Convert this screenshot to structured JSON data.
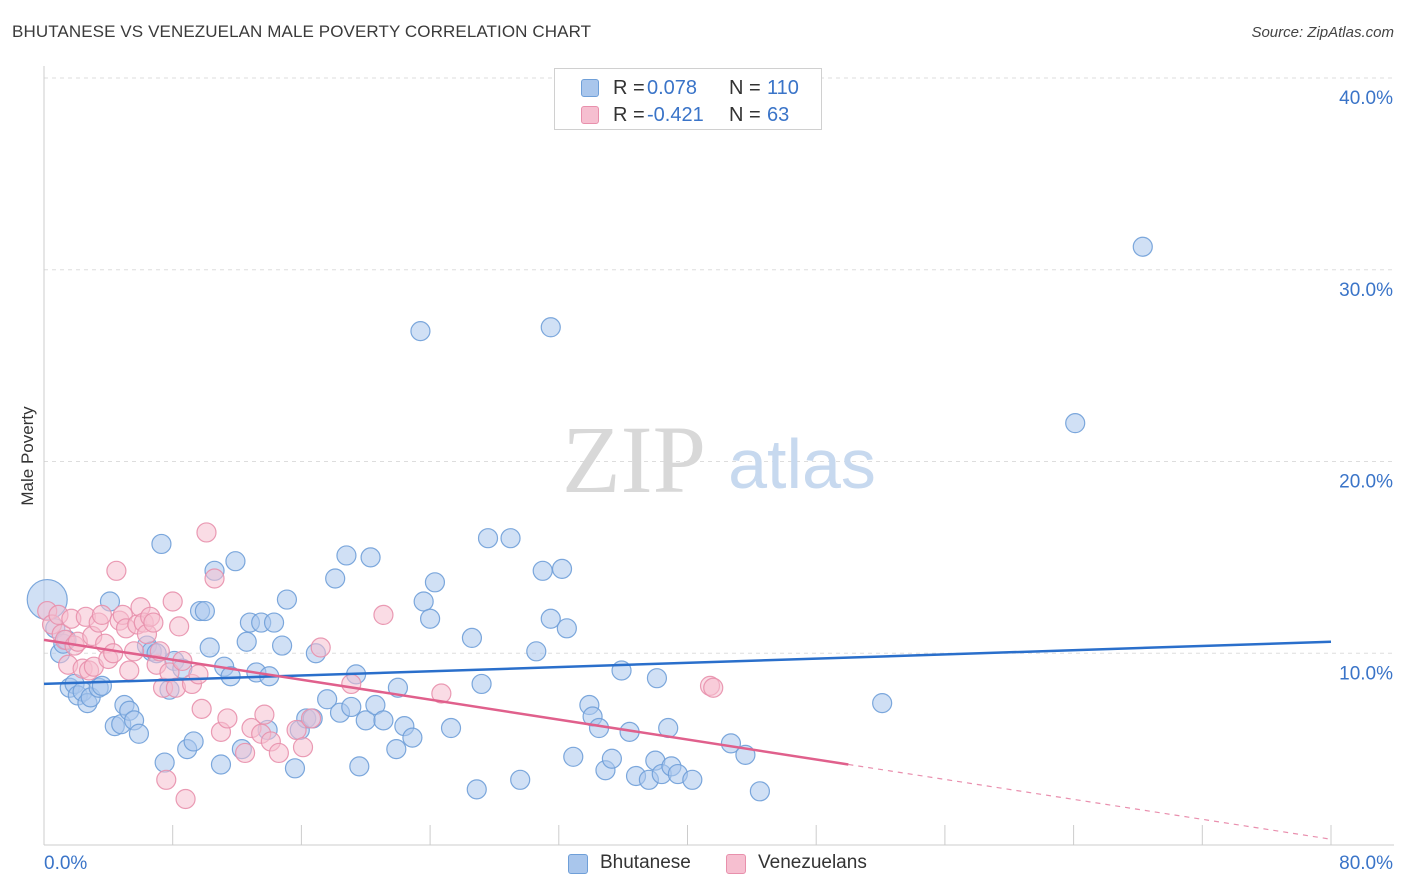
{
  "header": {
    "title": "BHUTANESE VS VENEZUELAN MALE POVERTY CORRELATION CHART",
    "source": "Source: ZipAtlas.com"
  },
  "watermark": {
    "zip": "ZIP",
    "atlas": "atlas"
  },
  "stats": {
    "rows": [
      {
        "r_label": "R =",
        "r_value": "0.078",
        "n_label": "N =",
        "n_value": "110"
      },
      {
        "r_label": "R =",
        "r_value": "-0.421",
        "n_label": "N =",
        "n_value": "63"
      }
    ]
  },
  "legend": {
    "items": [
      "Bhutanese",
      "Venezuelans"
    ]
  },
  "colors": {
    "blue_fill": "#a9c6ec",
    "blue_stroke": "#6f9fd8",
    "blue_line": "#2a6fcb",
    "pink_fill": "#f6bfd0",
    "pink_stroke": "#e890ac",
    "pink_line": "#e0608c",
    "tick_text": "#3a74c8",
    "grid": "#dddddd"
  },
  "chart_data": {
    "type": "scatter",
    "title": "BHUTANESE VS VENEZUELAN MALE POVERTY CORRELATION CHART",
    "xlabel": "",
    "ylabel": "Male Poverty",
    "xlim": [
      0,
      80
    ],
    "ylim": [
      0,
      40
    ],
    "x_ticks": [
      0,
      80
    ],
    "x_tick_labels": [
      "0.0%",
      "80.0%"
    ],
    "y_ticks": [
      10,
      20,
      30,
      40
    ],
    "y_tick_labels": [
      "10.0%",
      "20.0%",
      "30.0%",
      "40.0%"
    ],
    "grid": true,
    "legend_position": "bottom-center",
    "series": [
      {
        "name": "Bhutanese",
        "R": 0.078,
        "N": 110,
        "trend": {
          "x": [
            0,
            80
          ],
          "y": [
            8.4,
            10.6
          ],
          "dashed_from": null
        },
        "points": [
          [
            0.2,
            12.8
          ],
          [
            0.7,
            11.3
          ],
          [
            1.0,
            10.0
          ],
          [
            1.2,
            10.5
          ],
          [
            1.4,
            10.7
          ],
          [
            1.6,
            8.2
          ],
          [
            1.9,
            8.4
          ],
          [
            2.1,
            7.8
          ],
          [
            2.4,
            8.0
          ],
          [
            2.7,
            7.4
          ],
          [
            2.9,
            7.7
          ],
          [
            3.4,
            8.2
          ],
          [
            3.6,
            8.3
          ],
          [
            4.1,
            12.7
          ],
          [
            4.4,
            6.2
          ],
          [
            4.8,
            6.3
          ],
          [
            5.0,
            7.3
          ],
          [
            5.3,
            7.0
          ],
          [
            5.6,
            6.5
          ],
          [
            5.9,
            5.8
          ],
          [
            6.4,
            10.4
          ],
          [
            6.7,
            10.1
          ],
          [
            7.0,
            10.0
          ],
          [
            7.3,
            15.7
          ],
          [
            7.5,
            4.3
          ],
          [
            7.8,
            8.1
          ],
          [
            8.1,
            9.6
          ],
          [
            8.6,
            9.2
          ],
          [
            8.9,
            5.0
          ],
          [
            9.3,
            5.4
          ],
          [
            9.7,
            12.2
          ],
          [
            10.0,
            12.2
          ],
          [
            10.3,
            10.3
          ],
          [
            10.6,
            14.3
          ],
          [
            11.0,
            4.2
          ],
          [
            11.2,
            9.3
          ],
          [
            11.6,
            8.8
          ],
          [
            11.9,
            14.8
          ],
          [
            12.3,
            5.0
          ],
          [
            12.6,
            10.6
          ],
          [
            12.8,
            11.6
          ],
          [
            13.2,
            9.0
          ],
          [
            13.5,
            11.6
          ],
          [
            13.9,
            6.0
          ],
          [
            14.0,
            8.8
          ],
          [
            14.3,
            11.6
          ],
          [
            14.8,
            10.4
          ],
          [
            15.1,
            12.8
          ],
          [
            15.6,
            4.0
          ],
          [
            15.9,
            6.0
          ],
          [
            16.3,
            6.6
          ],
          [
            16.7,
            6.6
          ],
          [
            16.9,
            10.0
          ],
          [
            17.6,
            7.6
          ],
          [
            18.1,
            13.9
          ],
          [
            18.4,
            6.9
          ],
          [
            18.8,
            15.1
          ],
          [
            19.1,
            7.2
          ],
          [
            19.4,
            8.9
          ],
          [
            19.6,
            4.1
          ],
          [
            20.0,
            6.5
          ],
          [
            20.3,
            15.0
          ],
          [
            20.6,
            7.3
          ],
          [
            21.1,
            6.5
          ],
          [
            21.9,
            5.0
          ],
          [
            22.0,
            8.2
          ],
          [
            22.4,
            6.2
          ],
          [
            22.9,
            5.6
          ],
          [
            23.4,
            26.8
          ],
          [
            23.6,
            12.7
          ],
          [
            24.0,
            11.8
          ],
          [
            24.3,
            13.7
          ],
          [
            25.3,
            6.1
          ],
          [
            26.6,
            10.8
          ],
          [
            26.9,
            2.9
          ],
          [
            27.2,
            8.4
          ],
          [
            27.6,
            16.0
          ],
          [
            29.0,
            16.0
          ],
          [
            29.6,
            3.4
          ],
          [
            30.6,
            10.1
          ],
          [
            31.0,
            14.3
          ],
          [
            31.5,
            27.0
          ],
          [
            31.5,
            11.8
          ],
          [
            32.2,
            14.4
          ],
          [
            32.5,
            11.3
          ],
          [
            32.9,
            4.6
          ],
          [
            33.9,
            7.3
          ],
          [
            34.1,
            6.7
          ],
          [
            34.5,
            6.1
          ],
          [
            34.9,
            3.9
          ],
          [
            35.3,
            4.5
          ],
          [
            35.9,
            9.1
          ],
          [
            36.4,
            5.9
          ],
          [
            36.8,
            3.6
          ],
          [
            37.6,
            3.4
          ],
          [
            38.0,
            4.4
          ],
          [
            38.1,
            8.7
          ],
          [
            38.4,
            3.7
          ],
          [
            38.8,
            6.1
          ],
          [
            39.0,
            4.1
          ],
          [
            39.4,
            3.7
          ],
          [
            40.3,
            3.4
          ],
          [
            42.7,
            5.3
          ],
          [
            43.6,
            4.7
          ],
          [
            44.5,
            2.8
          ],
          [
            52.1,
            7.4
          ],
          [
            64.1,
            22.0
          ],
          [
            68.3,
            31.2
          ]
        ]
      },
      {
        "name": "Venezuelans",
        "R": -0.421,
        "N": 63,
        "trend": {
          "x": [
            0,
            80
          ],
          "y": [
            10.7,
            0.3
          ],
          "dashed_from": 50
        },
        "points": [
          [
            0.2,
            12.2
          ],
          [
            0.5,
            11.5
          ],
          [
            0.9,
            12.0
          ],
          [
            1.1,
            11.0
          ],
          [
            1.3,
            10.7
          ],
          [
            1.5,
            9.4
          ],
          [
            1.7,
            11.8
          ],
          [
            1.9,
            10.4
          ],
          [
            2.1,
            10.6
          ],
          [
            2.4,
            9.2
          ],
          [
            2.6,
            11.9
          ],
          [
            2.8,
            9.1
          ],
          [
            3.0,
            10.9
          ],
          [
            3.1,
            9.3
          ],
          [
            3.4,
            11.6
          ],
          [
            3.6,
            12.0
          ],
          [
            3.8,
            10.5
          ],
          [
            4.0,
            9.7
          ],
          [
            4.3,
            10.0
          ],
          [
            4.5,
            14.3
          ],
          [
            4.7,
            11.7
          ],
          [
            4.9,
            12.0
          ],
          [
            5.1,
            11.3
          ],
          [
            5.3,
            9.1
          ],
          [
            5.6,
            10.1
          ],
          [
            5.8,
            11.5
          ],
          [
            6.0,
            12.4
          ],
          [
            6.2,
            11.6
          ],
          [
            6.4,
            11.0
          ],
          [
            6.6,
            11.9
          ],
          [
            6.8,
            11.6
          ],
          [
            7.0,
            9.4
          ],
          [
            7.2,
            10.1
          ],
          [
            7.4,
            8.2
          ],
          [
            7.6,
            3.4
          ],
          [
            7.8,
            9.0
          ],
          [
            8.0,
            12.7
          ],
          [
            8.2,
            8.2
          ],
          [
            8.4,
            11.4
          ],
          [
            8.6,
            9.6
          ],
          [
            8.8,
            2.4
          ],
          [
            9.2,
            8.4
          ],
          [
            9.6,
            8.9
          ],
          [
            9.8,
            7.1
          ],
          [
            10.1,
            16.3
          ],
          [
            10.6,
            13.9
          ],
          [
            11.0,
            5.9
          ],
          [
            11.4,
            6.6
          ],
          [
            12.5,
            4.8
          ],
          [
            12.9,
            6.1
          ],
          [
            13.5,
            5.8
          ],
          [
            13.7,
            6.8
          ],
          [
            14.1,
            5.4
          ],
          [
            14.6,
            4.8
          ],
          [
            15.7,
            6.0
          ],
          [
            16.1,
            5.1
          ],
          [
            16.6,
            6.6
          ],
          [
            17.2,
            10.3
          ],
          [
            19.1,
            8.4
          ],
          [
            21.1,
            12.0
          ],
          [
            24.7,
            7.9
          ],
          [
            41.4,
            8.3
          ],
          [
            41.6,
            8.2
          ]
        ]
      }
    ]
  }
}
